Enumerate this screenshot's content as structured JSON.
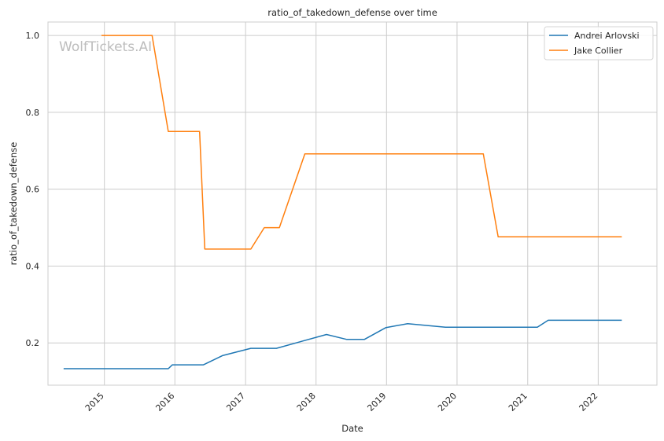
{
  "chart_data": {
    "type": "line",
    "title": "ratio_of_takedown_defense over time",
    "xlabel": "Date",
    "ylabel": "ratio_of_takedown_defense",
    "watermark": "WolfTickets.AI",
    "xlim": [
      "2014-03-15",
      "2022-11-01"
    ],
    "ylim": [
      0.09,
      1.035
    ],
    "x_ticks": [
      "2015",
      "2016",
      "2017",
      "2018",
      "2019",
      "2020",
      "2021",
      "2022"
    ],
    "y_ticks": [
      0.2,
      0.4,
      0.6,
      0.8,
      1.0
    ],
    "y_tick_labels": [
      "0.2",
      "0.4",
      "0.6",
      "0.8",
      "1.0"
    ],
    "grid": true,
    "legend_position": "top-right",
    "series": [
      {
        "name": "Andrei Arlovski",
        "color": "#1f77b4",
        "points": [
          [
            "2014-06-07",
            0.133
          ],
          [
            "2015-11-28",
            0.133
          ],
          [
            "2015-12-19",
            0.143
          ],
          [
            "2016-05-28",
            0.143
          ],
          [
            "2016-09-03",
            0.167
          ],
          [
            "2017-01-28",
            0.186
          ],
          [
            "2017-06-10",
            0.186
          ],
          [
            "2018-02-24",
            0.222
          ],
          [
            "2018-06-09",
            0.209
          ],
          [
            "2018-09-08",
            0.209
          ],
          [
            "2018-12-29",
            0.24
          ],
          [
            "2019-04-20",
            0.25
          ],
          [
            "2019-11-02",
            0.241
          ],
          [
            "2021-02-20",
            0.241
          ],
          [
            "2021-04-17",
            0.259
          ],
          [
            "2022-04-30",
            0.259
          ]
        ]
      },
      {
        "name": "Jake Collier",
        "color": "#ff7f0e",
        "points": [
          [
            "2014-12-20",
            1.0
          ],
          [
            "2015-09-05",
            1.0
          ],
          [
            "2015-11-28",
            0.75
          ],
          [
            "2016-05-08",
            0.75
          ],
          [
            "2016-06-04",
            0.444
          ],
          [
            "2017-01-28",
            0.444
          ],
          [
            "2017-04-08",
            0.5
          ],
          [
            "2017-06-25",
            0.5
          ],
          [
            "2017-11-04",
            0.692
          ],
          [
            "2020-05-16",
            0.692
          ],
          [
            "2020-08-01",
            0.476
          ],
          [
            "2022-04-30",
            0.476
          ]
        ]
      }
    ]
  }
}
